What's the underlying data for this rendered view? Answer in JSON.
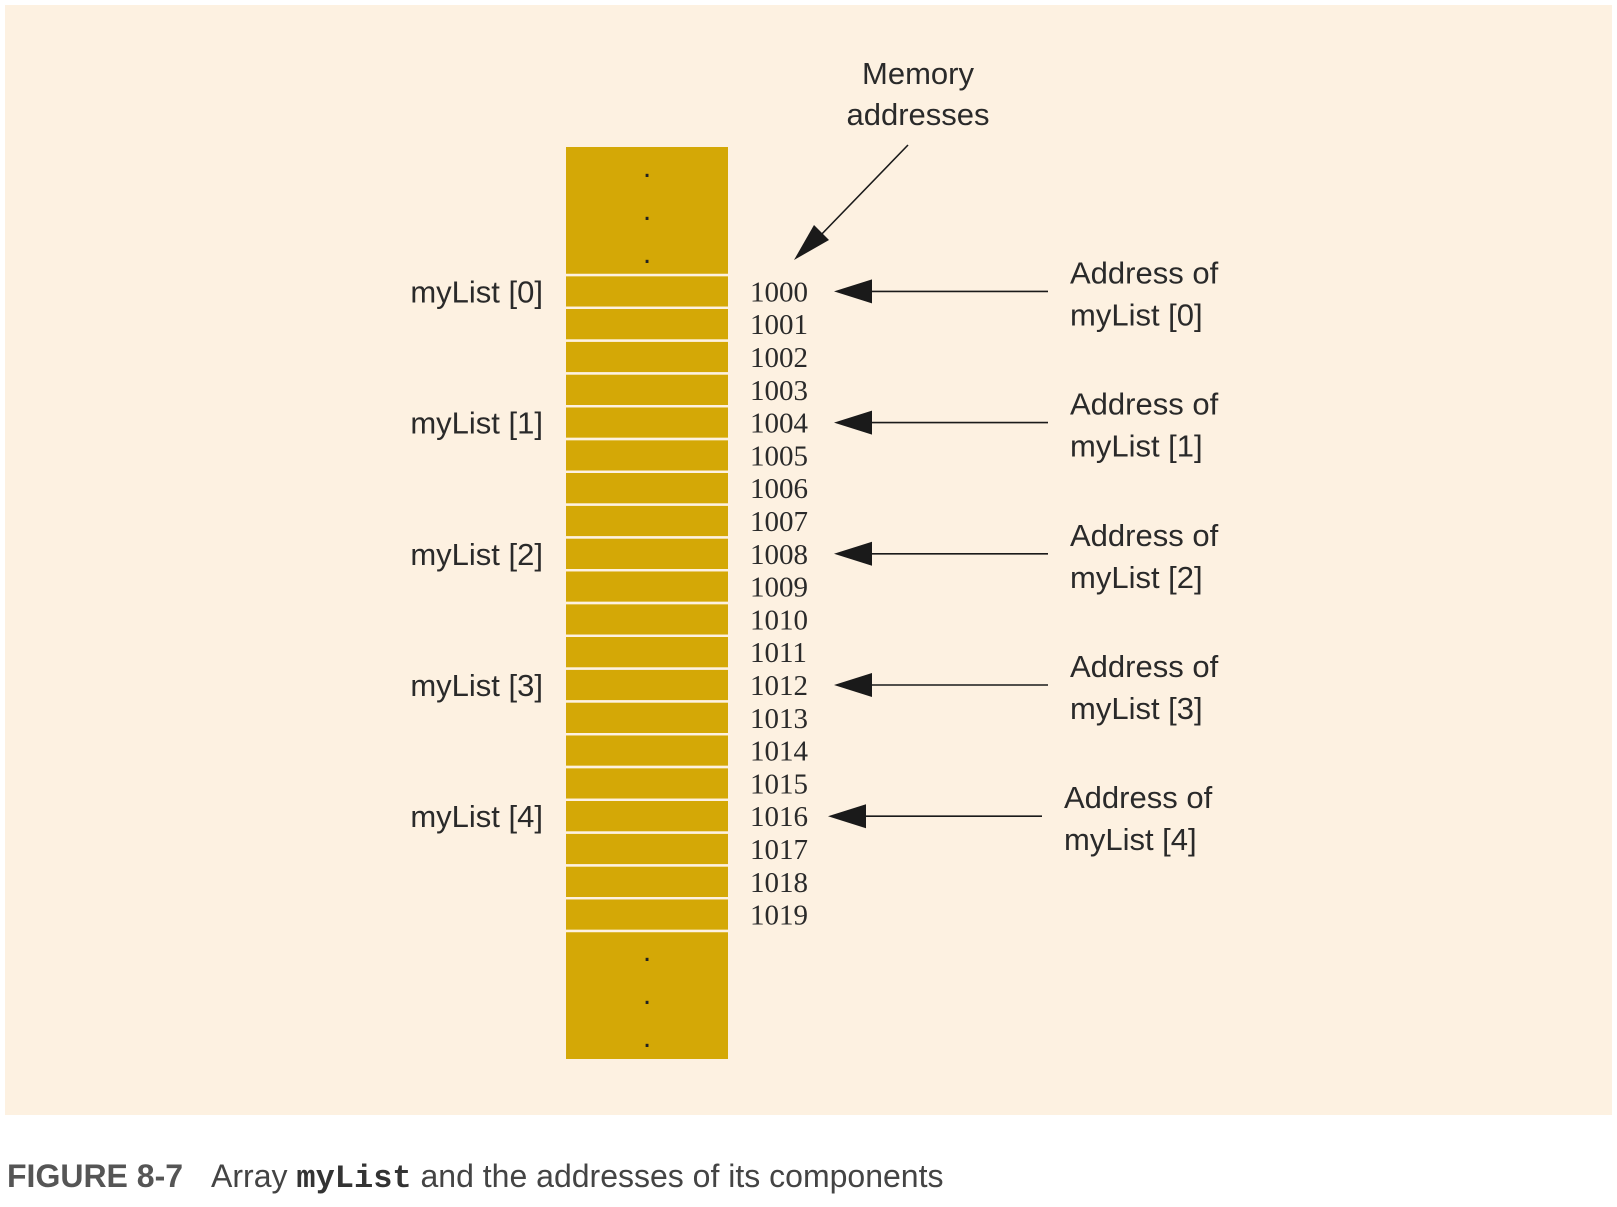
{
  "diagram": {
    "header": [
      "Memory",
      "addresses"
    ],
    "addresses": [
      "1000",
      "1001",
      "1002",
      "1003",
      "1004",
      "1005",
      "1006",
      "1007",
      "1008",
      "1009",
      "1010",
      "1011",
      "1012",
      "1013",
      "1014",
      "1015",
      "1016",
      "1017",
      "1018",
      "1019"
    ],
    "elements": [
      {
        "label": "myList [0]",
        "address_index": 0,
        "pointer_lines": [
          "Address of",
          "myList [0]"
        ]
      },
      {
        "label": "myList [1]",
        "address_index": 4,
        "pointer_lines": [
          "Address of",
          "myList [1]"
        ]
      },
      {
        "label": "myList [2]",
        "address_index": 8,
        "pointer_lines": [
          "Address of",
          "myList [2]"
        ]
      },
      {
        "label": "myList [3]",
        "address_index": 12,
        "pointer_lines": [
          "Address of",
          "myList [3]"
        ]
      },
      {
        "label": "myList [4]",
        "address_index": 16,
        "pointer_lines": [
          "Address of",
          "myList [4]"
        ]
      }
    ],
    "ellipsis": ".",
    "colors": {
      "background": "#fdf1e1",
      "cell": "#d4a806",
      "ink": "#1a1a1a"
    }
  },
  "caption": {
    "figure": "FIGURE 8-7",
    "pre": "Array ",
    "code": "myList",
    "post": " and the addresses of its components"
  }
}
